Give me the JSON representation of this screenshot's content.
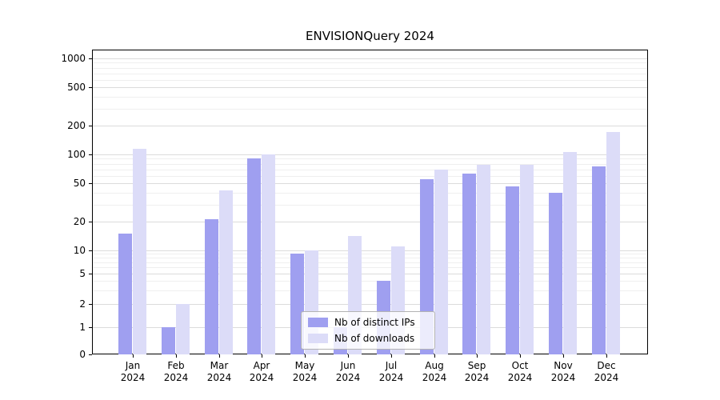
{
  "title": "ENVISIONQuery 2024",
  "chart_data": {
    "type": "bar",
    "title": "ENVISIONQuery 2024",
    "categories": [
      "Jan",
      "Feb",
      "Mar",
      "Apr",
      "May",
      "Jun",
      "Jul",
      "Aug",
      "Sep",
      "Oct",
      "Nov",
      "Dec"
    ],
    "year_label": "2024",
    "series": [
      {
        "name": "Nb of distinct IPs",
        "color": "#9f9ff0",
        "values": [
          15,
          1,
          21,
          90,
          9,
          1,
          4,
          55,
          63,
          46,
          40,
          75
        ]
      },
      {
        "name": "Nb of downloads",
        "color": "#dcdcf8",
        "values": [
          115,
          2,
          42,
          100,
          10,
          14,
          11,
          70,
          78,
          78,
          105,
          170
        ]
      }
    ],
    "yticks": [
      0,
      1,
      2,
      5,
      10,
      20,
      50,
      100,
      200,
      500,
      1000
    ],
    "yaxis_scale": "symlog",
    "ylim": [
      0,
      1000
    ],
    "grid": true,
    "legend_position": "lower center"
  }
}
